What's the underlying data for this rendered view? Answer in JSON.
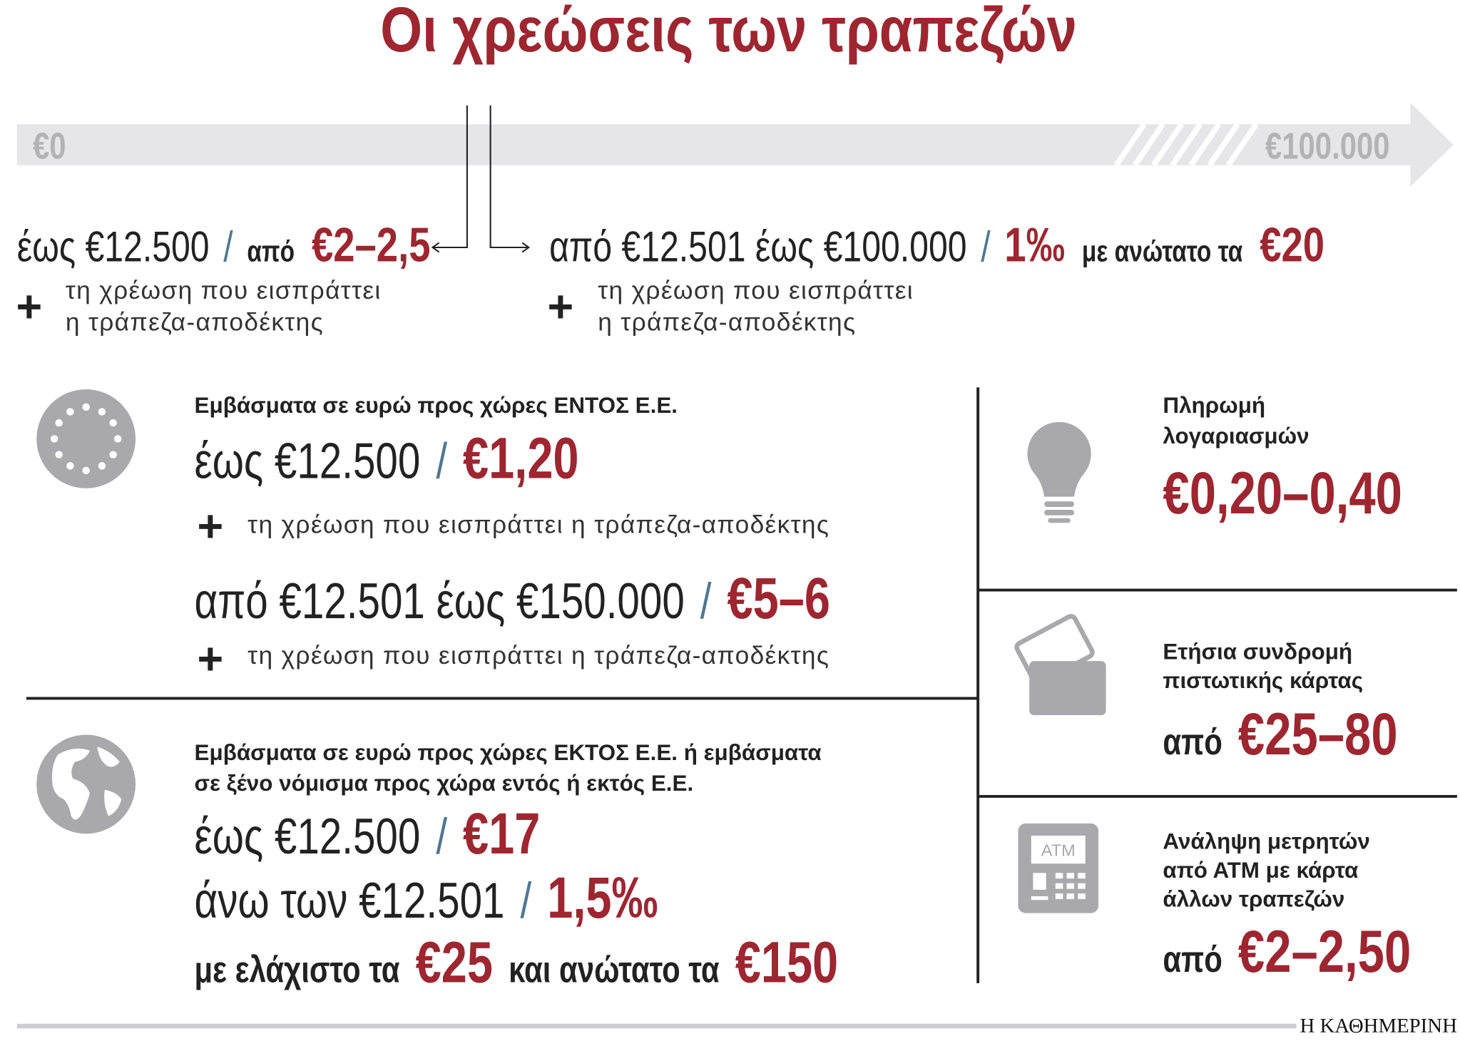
{
  "title": "Οι χρεώσεις των τραπεζών",
  "scale": {
    "start": "€0",
    "end": "€100.000"
  },
  "symbols": {
    "slash": "/",
    "plus": "+"
  },
  "tiers": [
    {
      "range": "έως €12.500",
      "prefix": "από",
      "fee": "€2–2,5",
      "note": [
        "τη χρέωση που εισπράττει",
        "η τράπεζα-αποδέκτης"
      ]
    },
    {
      "range": "από €12.501 έως €100.000",
      "fee": "1‰",
      "max_label": "με ανώτατο τα",
      "max": "€20",
      "note": [
        "τη χρέωση που εισπράττει",
        "η τράπεζα-αποδέκτης"
      ]
    }
  ],
  "eu": {
    "heading": "Εμβάσματα σε ευρώ προς χώρες ΕΝΤΟΣ Ε.Ε.",
    "rows": [
      {
        "range": "έως €12.500",
        "fee": "€1,20",
        "note": "τη χρέωση που εισπράττει η τράπεζα-αποδέκτης"
      },
      {
        "range": "από €12.501 έως €150.000",
        "fee": "€5–6",
        "note": "τη χρέωση που εισπράττει η τράπεζα-αποδέκτης"
      }
    ]
  },
  "non_eu": {
    "heading": [
      "Εμβάσματα σε ευρώ προς χώρες ΕΚΤΟΣ Ε.Ε. ή εμβάσματα",
      "σε ξένο νόμισμα προς χώρα εντός ή εκτός Ε.Ε."
    ],
    "rows": [
      {
        "range": "έως €12.500",
        "fee": "€17"
      },
      {
        "range": "άνω των €12.501",
        "fee": "1,5‰"
      }
    ],
    "limits": {
      "min_label": "με ελάχιστο τα",
      "min": "€25",
      "max_label": "και ανώτατο τα",
      "max": "€150"
    }
  },
  "services": [
    {
      "label": [
        "Πληρωμή",
        "λογαριασμών"
      ],
      "fee": "€0,20–0,40"
    },
    {
      "label": [
        "Ετήσια συνδρομή",
        "πιστωτικής κάρτας"
      ],
      "prefix": "από",
      "fee": "€25–80"
    },
    {
      "icon_text": "ATM",
      "label": [
        "Ανάληψη μετρητών",
        "από ΑΤΜ με κάρτα",
        "άλλων τραπεζών"
      ],
      "prefix": "από",
      "fee": "€2–2,50"
    }
  ],
  "source": "Η ΚΑΘΗΜΕΡΙΝΗ"
}
